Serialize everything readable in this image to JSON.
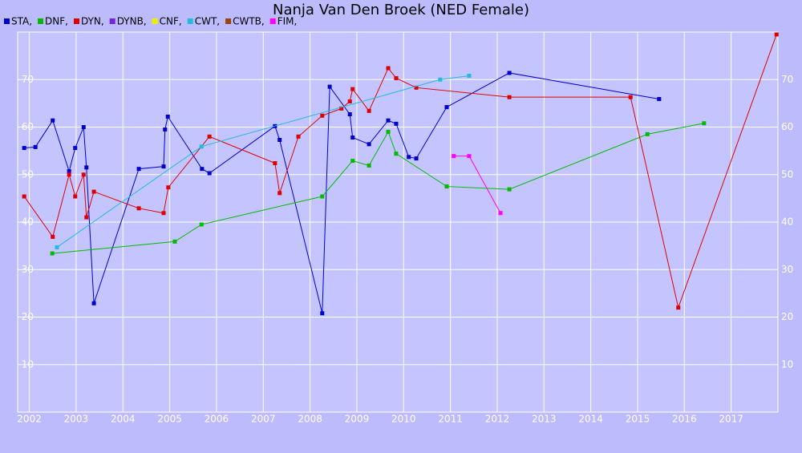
{
  "chart_data": {
    "type": "line",
    "title": "Nanja Van Den Broek (NED Female)",
    "xlim": [
      2001.75,
      2018
    ],
    "xticks": [
      2002,
      2003,
      2004,
      2005,
      2006,
      2007,
      2008,
      2009,
      2010,
      2011,
      2012,
      2013,
      2014,
      2015,
      2016,
      2017
    ],
    "ylim": [
      0,
      80
    ],
    "yticks": [
      10,
      20,
      30,
      40,
      50,
      60,
      70
    ],
    "grid": true,
    "series": [
      {
        "name": "STA,",
        "color": "#0000cc",
        "x": [
          2001.89,
          2002.13,
          2002.5,
          2002.85,
          2002.98,
          2003.16,
          2003.22,
          2003.38,
          2004.34,
          2004.87,
          2004.9,
          2004.96,
          2005.69,
          2005.85,
          2007.25,
          2007.35,
          2008.26,
          2008.42,
          2008.85,
          2008.91,
          2009.26,
          2009.67,
          2009.84,
          2010.11,
          2010.27,
          2010.92,
          2012.26,
          2015.46
        ],
        "values": [
          55.6,
          55.8,
          61.4,
          50.7,
          55.6,
          60.0,
          51.5,
          22.9,
          51.2,
          51.7,
          59.5,
          62.2,
          51.2,
          50.3,
          60.2,
          57.3,
          20.8,
          68.5,
          62.7,
          57.8,
          56.4,
          61.4,
          60.7,
          53.7,
          53.4,
          64.2,
          71.4,
          65.9
        ]
      },
      {
        "name": "DNF,",
        "color": "#00bb00",
        "x": [
          2002.49,
          2005.11,
          2005.68,
          2008.26,
          2008.91,
          2009.26,
          2009.67,
          2009.84,
          2010.92,
          2012.26,
          2015.21,
          2016.42
        ],
        "values": [
          33.4,
          35.9,
          39.5,
          45.4,
          52.9,
          51.9,
          59.0,
          54.4,
          47.5,
          46.9,
          58.5,
          60.8
        ]
      },
      {
        "name": "DYN,",
        "color": "#dd0000",
        "x": [
          2001.89,
          2002.5,
          2002.85,
          2002.98,
          2003.16,
          2003.22,
          2003.38,
          2004.34,
          2004.87,
          2004.97,
          2005.85,
          2007.25,
          2007.35,
          2007.75,
          2008.26,
          2008.67,
          2008.85,
          2008.91,
          2009.26,
          2009.67,
          2009.84,
          2010.27,
          2012.26,
          2014.85,
          2015.87,
          2017.97
        ],
        "values": [
          45.4,
          36.9,
          50.0,
          45.4,
          50.0,
          41.0,
          46.4,
          42.9,
          41.9,
          47.3,
          58.0,
          52.4,
          46.1,
          58.0,
          62.4,
          63.9,
          65.4,
          68.0,
          63.4,
          72.4,
          70.3,
          68.3,
          66.3,
          66.3,
          22.0,
          79.5
        ]
      },
      {
        "name": "DYNB,",
        "color": "#7722dd",
        "x": [],
        "values": []
      },
      {
        "name": "CNF,",
        "color": "#eeee00",
        "x": [],
        "values": []
      },
      {
        "name": "CWT,",
        "color": "#22bbdd",
        "x": [
          2002.59,
          2005.68,
          2010.78,
          2011.4
        ],
        "values": [
          34.7,
          55.9,
          70.0,
          70.8
        ]
      },
      {
        "name": "CWTB,",
        "color": "#994411",
        "x": [],
        "values": []
      },
      {
        "name": "FIM,",
        "color": "#ff00ff",
        "x": [
          2011.07,
          2011.4,
          2012.07
        ],
        "values": [
          53.9,
          53.9,
          41.9
        ]
      }
    ]
  }
}
